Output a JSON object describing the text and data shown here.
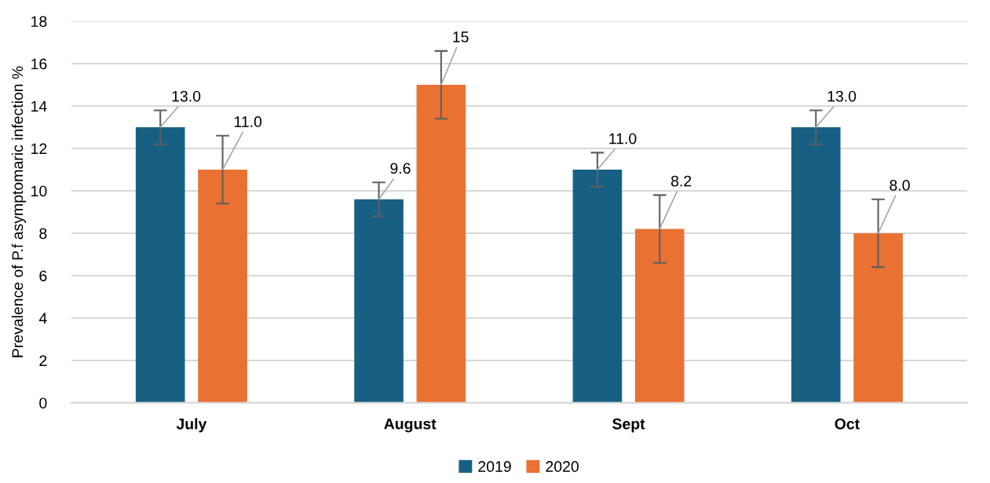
{
  "chart_data": {
    "type": "bar",
    "ylabel": "Prevalence of P.f asymptomaric infection %",
    "categories": [
      "July",
      "August",
      "Sept",
      "Oct"
    ],
    "series": [
      {
        "name": "2019",
        "color": "#176083",
        "values": [
          13.0,
          9.6,
          11.0,
          13.0
        ],
        "errors": [
          0.8,
          0.8,
          0.8,
          0.8
        ],
        "value_labels": [
          "13.0",
          "9.6",
          "11.0",
          "13.0"
        ]
      },
      {
        "name": "2020",
        "color": "#e97132",
        "values": [
          11.0,
          15,
          8.2,
          8.0
        ],
        "errors": [
          1.6,
          1.6,
          1.6,
          1.6
        ],
        "value_labels": [
          "11.0",
          "15",
          "8.2",
          "8.0"
        ]
      }
    ],
    "ylim": [
      0,
      18
    ],
    "yticks": [
      0,
      2,
      4,
      6,
      8,
      10,
      12,
      14,
      16,
      18
    ],
    "grid": "y",
    "legend": "bottom"
  }
}
